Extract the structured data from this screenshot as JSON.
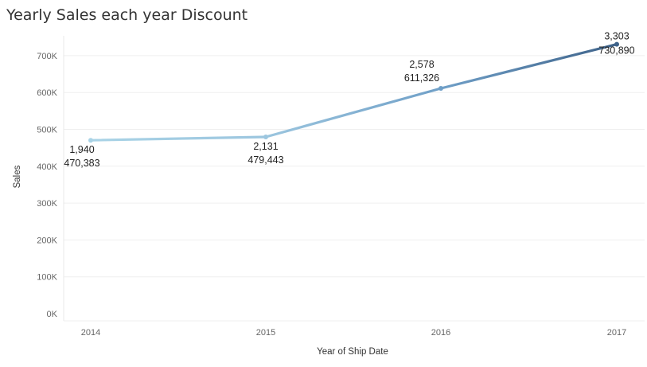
{
  "chart_data": {
    "type": "line",
    "title": "Yearly Sales each year Discount",
    "xlabel": "Year of Ship Date",
    "ylabel": "Sales",
    "categories": [
      "2014",
      "2015",
      "2016",
      "2017"
    ],
    "series": [
      {
        "values": [
          470383,
          479443,
          611326,
          730890
        ],
        "counts": [
          1940,
          2131,
          2578,
          3303
        ],
        "value_labels": [
          "470,383",
          "479,443",
          "611,326",
          "730,890"
        ],
        "count_labels": [
          "1,940",
          "2,131",
          "2,578",
          "3,303"
        ],
        "colors": [
          "#a9d3e6",
          "#9cc6df",
          "#6f9fc7",
          "#3e6289"
        ]
      }
    ],
    "yticks": [
      0,
      100000,
      200000,
      300000,
      400000,
      500000,
      600000,
      700000
    ],
    "ytick_labels": [
      "0K",
      "100K",
      "200K",
      "300K",
      "400K",
      "500K",
      "600K",
      "700K"
    ],
    "ylim": [
      0,
      760000
    ],
    "grid": true,
    "legend": "none"
  }
}
